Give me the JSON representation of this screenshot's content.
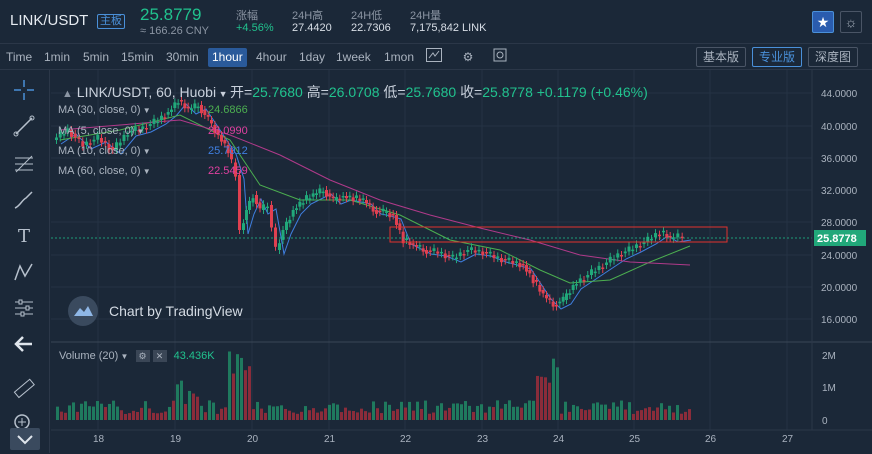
{
  "header": {
    "pair": "LINK/USDT",
    "badge": "主板",
    "price": "25.8779",
    "cny": "≈ 166.26 CNY",
    "stats": [
      {
        "label": "涨幅",
        "value": "+4.56%"
      },
      {
        "label": "24H高",
        "value": "27.4420"
      },
      {
        "label": "24H低",
        "value": "22.7306"
      },
      {
        "label": "24H量",
        "value": "7,175,842 LINK"
      }
    ]
  },
  "toolbar": {
    "timeframes": [
      "Time",
      "1min",
      "5min",
      "15min",
      "30min",
      "1hour",
      "4hour",
      "1day",
      "1week",
      "1mon"
    ],
    "active_timeframe": "1hour",
    "views": [
      "基本版",
      "专业版",
      "深度图"
    ],
    "active_view": "专业版"
  },
  "legend": {
    "title": "LINK/USDT, 60, Huobi",
    "open_label": "开=",
    "open": "25.7680",
    "high_label": "高=",
    "high": "26.0708",
    "low_label": "低=",
    "low": "25.7680",
    "close_label": "收=",
    "close": "25.8778",
    "change": "+0.1179 (+0.46%)"
  },
  "indicators": [
    {
      "label": "MA (30, close, 0)",
      "value": "24.6866",
      "color": "#4caf50"
    },
    {
      "label": "MA (5, close, 0)",
      "value": "26.0990",
      "color": "#e040a0"
    },
    {
      "label": "MA (10, close, 0)",
      "value": "25.7012",
      "color": "#3f7fe0"
    },
    {
      "label": "MA (60, close, 0)",
      "value": "22.5459",
      "color": "#e040a0"
    }
  ],
  "watermark": "Chart by TradingView",
  "volume": {
    "label": "Volume (20)",
    "value": "43.436K"
  },
  "price_axis": [
    "44.0000",
    "40.0000",
    "36.0000",
    "32.0000",
    "28.0000",
    "24.0000",
    "20.0000",
    "16.0000"
  ],
  "current_price_tag": "25.8778",
  "volume_axis": [
    "2M",
    "1M",
    "0"
  ],
  "time_axis": [
    "18",
    "19",
    "20",
    "21",
    "22",
    "23",
    "24",
    "25",
    "26",
    "27"
  ],
  "colors": {
    "up": "#21a87a",
    "down": "#e04050",
    "accent": "#2a5a9a",
    "background": "#1b2838"
  }
}
